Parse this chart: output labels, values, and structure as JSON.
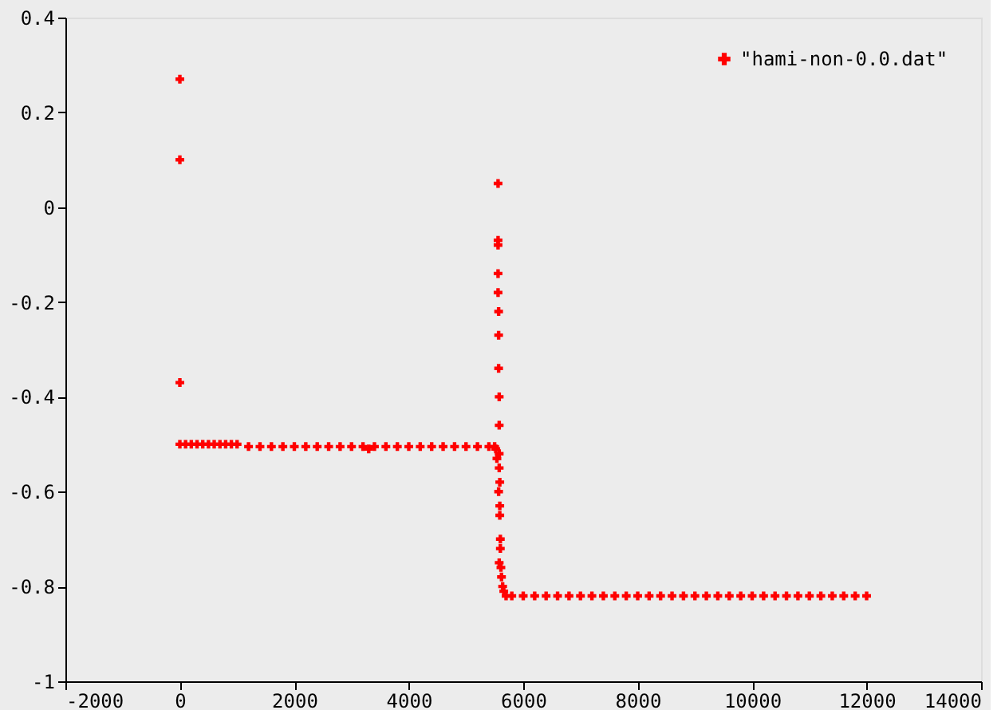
{
  "chart_data": {
    "type": "scatter",
    "marker": "cross",
    "legend": "top right",
    "grid": false,
    "xlim": [
      -2000,
      14000
    ],
    "xticks": [
      -2000,
      0,
      2000,
      4000,
      6000,
      8000,
      10000,
      12000,
      14000
    ],
    "ylim": [
      -1,
      0.4
    ],
    "yticks": [
      -1,
      -0.8,
      -0.6,
      -0.4,
      -0.2,
      0,
      0.2,
      0.4
    ],
    "series": [
      {
        "name": "\"hami-non-0.0.dat\"",
        "color": "#ff0000",
        "x": [
          0,
          0,
          0,
          0,
          100,
          200,
          300,
          400,
          500,
          600,
          700,
          800,
          900,
          1000,
          1200,
          1400,
          1600,
          1800,
          2000,
          2200,
          2400,
          2600,
          2800,
          3000,
          3200,
          3300,
          3400,
          3600,
          3800,
          4000,
          4200,
          4400,
          4600,
          4800,
          5000,
          5200,
          5400,
          5500,
          5520,
          5540,
          5560,
          5560,
          5560,
          5560,
          5560,
          5570,
          5570,
          5570,
          5580,
          5580,
          5580,
          5590,
          5590,
          5600,
          5580,
          5570,
          5580,
          5590,
          5600,
          5610,
          5620,
          5640,
          5660,
          5700,
          5800,
          6000,
          6200,
          6400,
          6600,
          6800,
          7000,
          7200,
          7400,
          7600,
          7800,
          8000,
          8200,
          8400,
          8600,
          8800,
          9000,
          9200,
          9400,
          9600,
          9800,
          10000,
          10200,
          10400,
          10600,
          10800,
          11000,
          11200,
          11400,
          11600,
          11800,
          12000
        ],
        "values": [
          0.27,
          0.1,
          -0.37,
          -0.5,
          -0.5,
          -0.5,
          -0.5,
          -0.5,
          -0.5,
          -0.5,
          -0.5,
          -0.5,
          -0.5,
          -0.5,
          -0.505,
          -0.505,
          -0.505,
          -0.505,
          -0.505,
          -0.505,
          -0.505,
          -0.505,
          -0.505,
          -0.505,
          -0.505,
          -0.51,
          -0.505,
          -0.505,
          -0.505,
          -0.505,
          -0.505,
          -0.505,
          -0.505,
          -0.505,
          -0.505,
          -0.505,
          -0.505,
          -0.505,
          -0.51,
          -0.53,
          0.05,
          -0.07,
          -0.08,
          -0.14,
          -0.18,
          -0.22,
          -0.27,
          -0.34,
          -0.4,
          -0.46,
          -0.52,
          -0.58,
          -0.63,
          -0.7,
          -0.75,
          -0.6,
          -0.55,
          -0.65,
          -0.72,
          -0.76,
          -0.78,
          -0.8,
          -0.81,
          -0.82,
          -0.82,
          -0.82,
          -0.82,
          -0.82,
          -0.82,
          -0.82,
          -0.82,
          -0.82,
          -0.82,
          -0.82,
          -0.82,
          -0.82,
          -0.82,
          -0.82,
          -0.82,
          -0.82,
          -0.82,
          -0.82,
          -0.82,
          -0.82,
          -0.82,
          -0.82,
          -0.82,
          -0.82,
          -0.82,
          -0.82,
          -0.82,
          -0.82,
          -0.82,
          -0.82,
          -0.82,
          -0.82
        ]
      }
    ]
  }
}
